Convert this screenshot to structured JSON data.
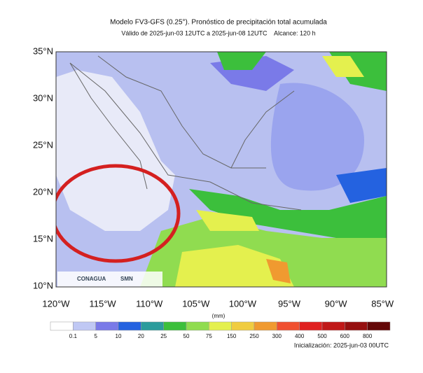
{
  "header": {
    "title": "Modelo FV3-GFS (0.25°). Pronóstico de precipitación total acumulada",
    "subtitle": "Válido de 2025-jun-03 12UTC a 2025-jun-08 12UTC    Alcance: 120 h"
  },
  "map": {
    "lat_labels": [
      "35°N",
      "30°N",
      "25°N",
      "20°N",
      "15°N",
      "10°N"
    ],
    "lon_labels": [
      "120°W",
      "115°W",
      "110°W",
      "105°W",
      "100°W",
      "95°W",
      "90°W",
      "85°W"
    ],
    "logos": [
      "CONAGUA",
      "SMN"
    ]
  },
  "colorbar": {
    "units": "(mm)",
    "labels": [
      "0.1",
      "5",
      "10",
      "20",
      "25",
      "50",
      "75",
      "150",
      "250",
      "300",
      "400",
      "500",
      "600",
      "800"
    ],
    "colors": [
      "#ffffff",
      "#c0c8f4",
      "#7a7ae8",
      "#2462e0",
      "#2c9c9c",
      "#3cbf3c",
      "#90dc50",
      "#e4f04e",
      "#f0cc40",
      "#f09a30",
      "#f05030",
      "#e02020",
      "#c01818",
      "#961010",
      "#640808"
    ]
  },
  "footer": {
    "init": "Inicialización: 2025-jun-03 00UTC"
  }
}
